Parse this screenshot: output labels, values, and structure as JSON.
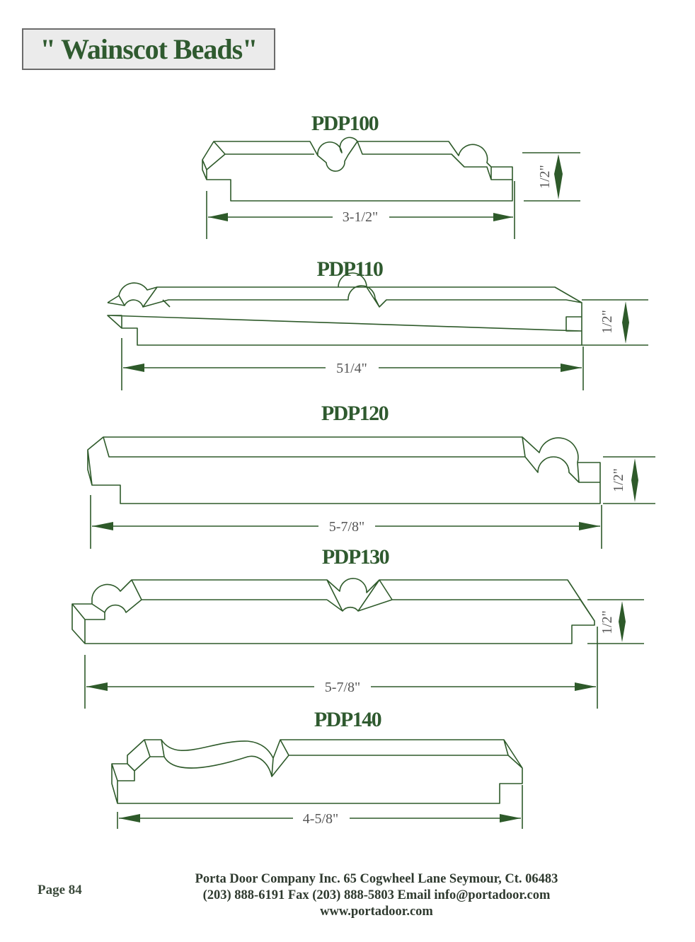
{
  "title": "\" Wainscot Beads\"",
  "colors": {
    "title_green": "#2f5a2f",
    "line_green": "#2e5a2a",
    "box_gray": "#ebebeb"
  },
  "profiles": [
    {
      "name": "PDP100",
      "width_label": "3-1/2\"",
      "height_label": "1/2\""
    },
    {
      "name": "PDP110",
      "width_label": "51/4\"",
      "height_label": "1/2\""
    },
    {
      "name": "PDP120",
      "width_label": "5-7/8\"",
      "height_label": "1/2\""
    },
    {
      "name": "PDP130",
      "width_label": "5-7/8\"",
      "height_label": "1/2\""
    },
    {
      "name": "PDP140",
      "width_label": "4-5/8\""
    }
  ],
  "footer": {
    "page": "Page 84",
    "line1": "Porta Door Company Inc. 65 Cogwheel Lane Seymour, Ct. 06483",
    "line2": "(203) 888-6191 Fax (203) 888-5803 Email info@portadoor.com",
    "line3": "www.portadoor.com"
  }
}
